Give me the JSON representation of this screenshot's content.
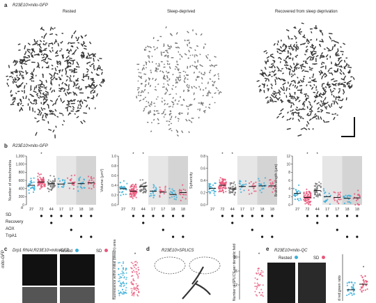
{
  "panel_a": {
    "letter": "a",
    "genotype": "R23E10>mito-GFP",
    "conditions": [
      "Rested",
      "Sleep-deprived",
      "Recovered from sleep deprivation"
    ]
  },
  "panel_b": {
    "letter": "b",
    "genotype": "R23E10>mito-GFP",
    "row_labels": {
      "n": "n",
      "sd": "SD",
      "recovery": "Recovery",
      "aox": "AOX",
      "trpa1": "TrpA1"
    },
    "n_values": [
      "27",
      "72",
      "44",
      "17",
      "17",
      "18",
      "18"
    ]
  },
  "chart_data": [
    {
      "type": "scatter",
      "ylabel": "Number of mitochondria",
      "yticks": [
        "0",
        "200",
        "400",
        "600",
        "800",
        "1,000",
        "1,200"
      ],
      "ylim": [
        0,
        1200
      ],
      "groups": [
        "27",
        "72",
        "44",
        "17",
        "17",
        "18",
        "18"
      ],
      "means": [
        480,
        560,
        520,
        510,
        530,
        520,
        540
      ],
      "significance": [
        "",
        "*",
        "",
        "",
        "",
        "",
        ""
      ]
    },
    {
      "type": "scatter",
      "ylabel": "Volume (µm³)",
      "yticks": [
        "0.0",
        "0.2",
        "0.4",
        "0.6",
        "0.8",
        "1.0"
      ],
      "ylim": [
        0,
        1.0
      ],
      "groups": [
        "27",
        "72",
        "44",
        "17",
        "17",
        "18",
        "18"
      ],
      "means": [
        0.33,
        0.28,
        0.38,
        0.28,
        0.26,
        0.21,
        0.25
      ],
      "significance": [
        "",
        "*",
        "*",
        "",
        "",
        "",
        ""
      ]
    },
    {
      "type": "scatter",
      "ylabel": "Sphericity",
      "yticks": [
        "0.0",
        "0.2",
        "0.4",
        "0.6",
        "0.8"
      ],
      "ylim": [
        0,
        0.8
      ],
      "groups": [
        "27",
        "72",
        "44",
        "17",
        "17",
        "18",
        "18"
      ],
      "means": [
        0.27,
        0.32,
        0.26,
        0.3,
        0.3,
        0.31,
        0.31
      ],
      "significance": [
        "",
        "*",
        "*",
        "",
        "",
        "",
        ""
      ]
    },
    {
      "type": "scatter",
      "ylabel": "Branch length (µm)",
      "yticks": [
        "0",
        "2",
        "4",
        "6",
        "8",
        "10",
        "12"
      ],
      "ylim": [
        0,
        12
      ],
      "groups": [
        "27",
        "72",
        "44",
        "17",
        "17",
        "18",
        "18"
      ],
      "means": [
        2.8,
        1.8,
        3.5,
        2.0,
        1.8,
        1.6,
        1.7
      ],
      "significance": [
        "",
        "*",
        "*",
        "",
        "",
        "",
        ""
      ]
    }
  ],
  "panel_c": {
    "letter": "c",
    "genotype": "Drp1 RNAi;R23E10>mito-GFP",
    "legend_rested": "Rested",
    "legend_sd": "SD",
    "row_label_1": "mito-GFP",
    "ylabel": "fluorescence within initial (bleach) area",
    "significance": "*"
  },
  "panel_d": {
    "letter": "d",
    "genotype": "R23E10>SPLICS",
    "ylabel": "Number of SPLICS per dendritic field",
    "yticks": [
      "20",
      "16",
      "12"
    ],
    "significance": "*"
  },
  "panel_e": {
    "letter": "e",
    "genotype": "R23E10>mito-QC",
    "legend_rested": "Rested",
    "legend_sd": "SD",
    "ylabel": "d red:green ratio",
    "significance": "*"
  },
  "colors": {
    "rested": "#3aaed8",
    "sd": "#e8577a",
    "recovery": "#777777",
    "shade": "#e6e6e6"
  }
}
